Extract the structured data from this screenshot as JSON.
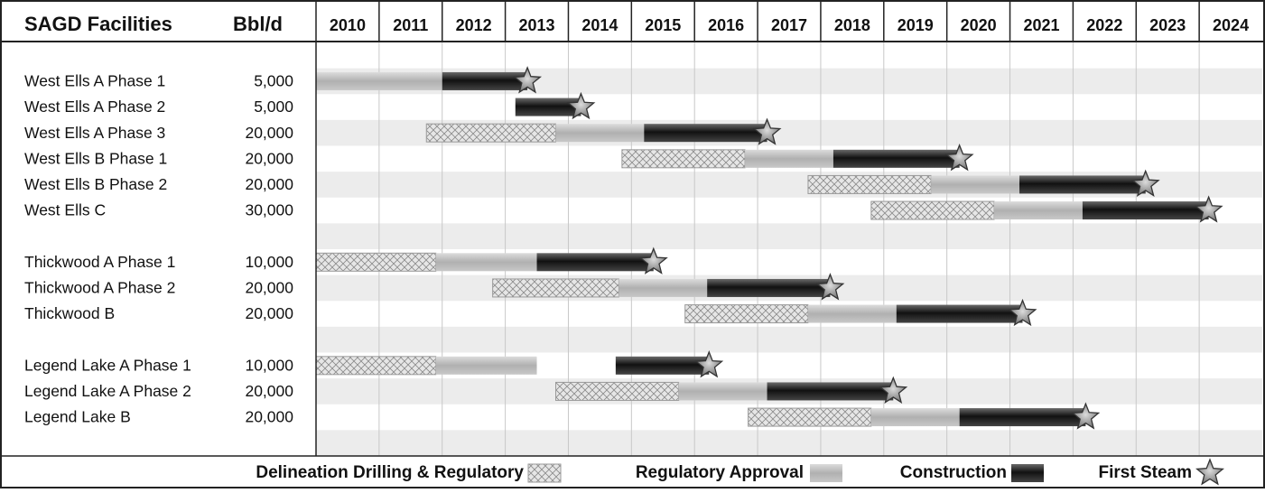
{
  "chart_data": {
    "type": "gantt",
    "category_header": "SAGD Facilities",
    "capacity_header": "Bbl/d",
    "categories": [
      null,
      "West Ells A Phase 1",
      "West Ells A Phase 2",
      "West Ells A Phase 3",
      "West Ells B Phase 1",
      "West Ells B Phase 2",
      "West Ells C",
      null,
      "Thickwood A Phase 1",
      "Thickwood A Phase 2",
      "Thickwood B",
      null,
      "Legend Lake A Phase 1",
      "Legend Lake A Phase 2",
      "Legend Lake B",
      null
    ],
    "capacities": [
      null,
      "5,000",
      "5,000",
      "20,000",
      "20,000",
      "20,000",
      "30,000",
      null,
      "10,000",
      "20,000",
      "20,000",
      null,
      "10,000",
      "20,000",
      "20,000",
      null
    ],
    "xlim": [
      2010,
      2025
    ],
    "xticks": [
      2010,
      2011,
      2012,
      2013,
      2014,
      2015,
      2016,
      2017,
      2018,
      2019,
      2020,
      2021,
      2022,
      2023,
      2024
    ],
    "grid": true,
    "series": [
      {
        "name": "Delineation Drilling & Regulatory",
        "style": "hatch",
        "color": "#d9d9d9",
        "values": [
          null,
          null,
          null,
          [
            2011.75,
            2013.8
          ],
          [
            2014.85,
            2016.8
          ],
          [
            2017.8,
            2019.75
          ],
          [
            2018.8,
            2020.75
          ],
          null,
          [
            2010,
            2011.9
          ],
          [
            2012.8,
            2014.8
          ],
          [
            2015.85,
            2017.8
          ],
          null,
          [
            2010,
            2011.9
          ],
          [
            2013.8,
            2015.75
          ],
          [
            2016.85,
            2018.8
          ],
          null
        ]
      },
      {
        "name": "Regulatory Approval",
        "style": "light",
        "color": "#b3b3b3",
        "values": [
          null,
          [
            2010,
            2012
          ],
          null,
          [
            2013.8,
            2015.2
          ],
          [
            2016.8,
            2018.2
          ],
          [
            2019.75,
            2021.15
          ],
          [
            2020.75,
            2022.15
          ],
          null,
          [
            2011.9,
            2013.5
          ],
          [
            2014.8,
            2016.2
          ],
          [
            2017.8,
            2019.2
          ],
          null,
          [
            2011.9,
            2013.5
          ],
          [
            2015.75,
            2017.15
          ],
          [
            2018.8,
            2020.2
          ],
          null
        ]
      },
      {
        "name": "Construction",
        "style": "dark",
        "color": "#2b2b2b",
        "values": [
          null,
          [
            2012,
            2013.35
          ],
          [
            2013.16,
            2014.2
          ],
          [
            2015.2,
            2017.15
          ],
          [
            2018.2,
            2020.2
          ],
          [
            2021.15,
            2023.15
          ],
          [
            2022.15,
            2024.15
          ],
          null,
          [
            2013.5,
            2015.35
          ],
          [
            2016.2,
            2018.15
          ],
          [
            2019.2,
            2021.2
          ],
          null,
          [
            2014.75,
            2016.23
          ],
          [
            2017.15,
            2019.15
          ],
          [
            2020.2,
            2022.2
          ],
          null
        ]
      },
      {
        "name": "First Steam",
        "style": "star",
        "color": "#8c8c8c",
        "values": [
          null,
          2013.35,
          2014.2,
          2017.15,
          2020.2,
          2023.15,
          2024.15,
          null,
          2015.35,
          2018.15,
          2021.2,
          null,
          2016.23,
          2019.15,
          2022.2,
          null
        ]
      }
    ]
  }
}
